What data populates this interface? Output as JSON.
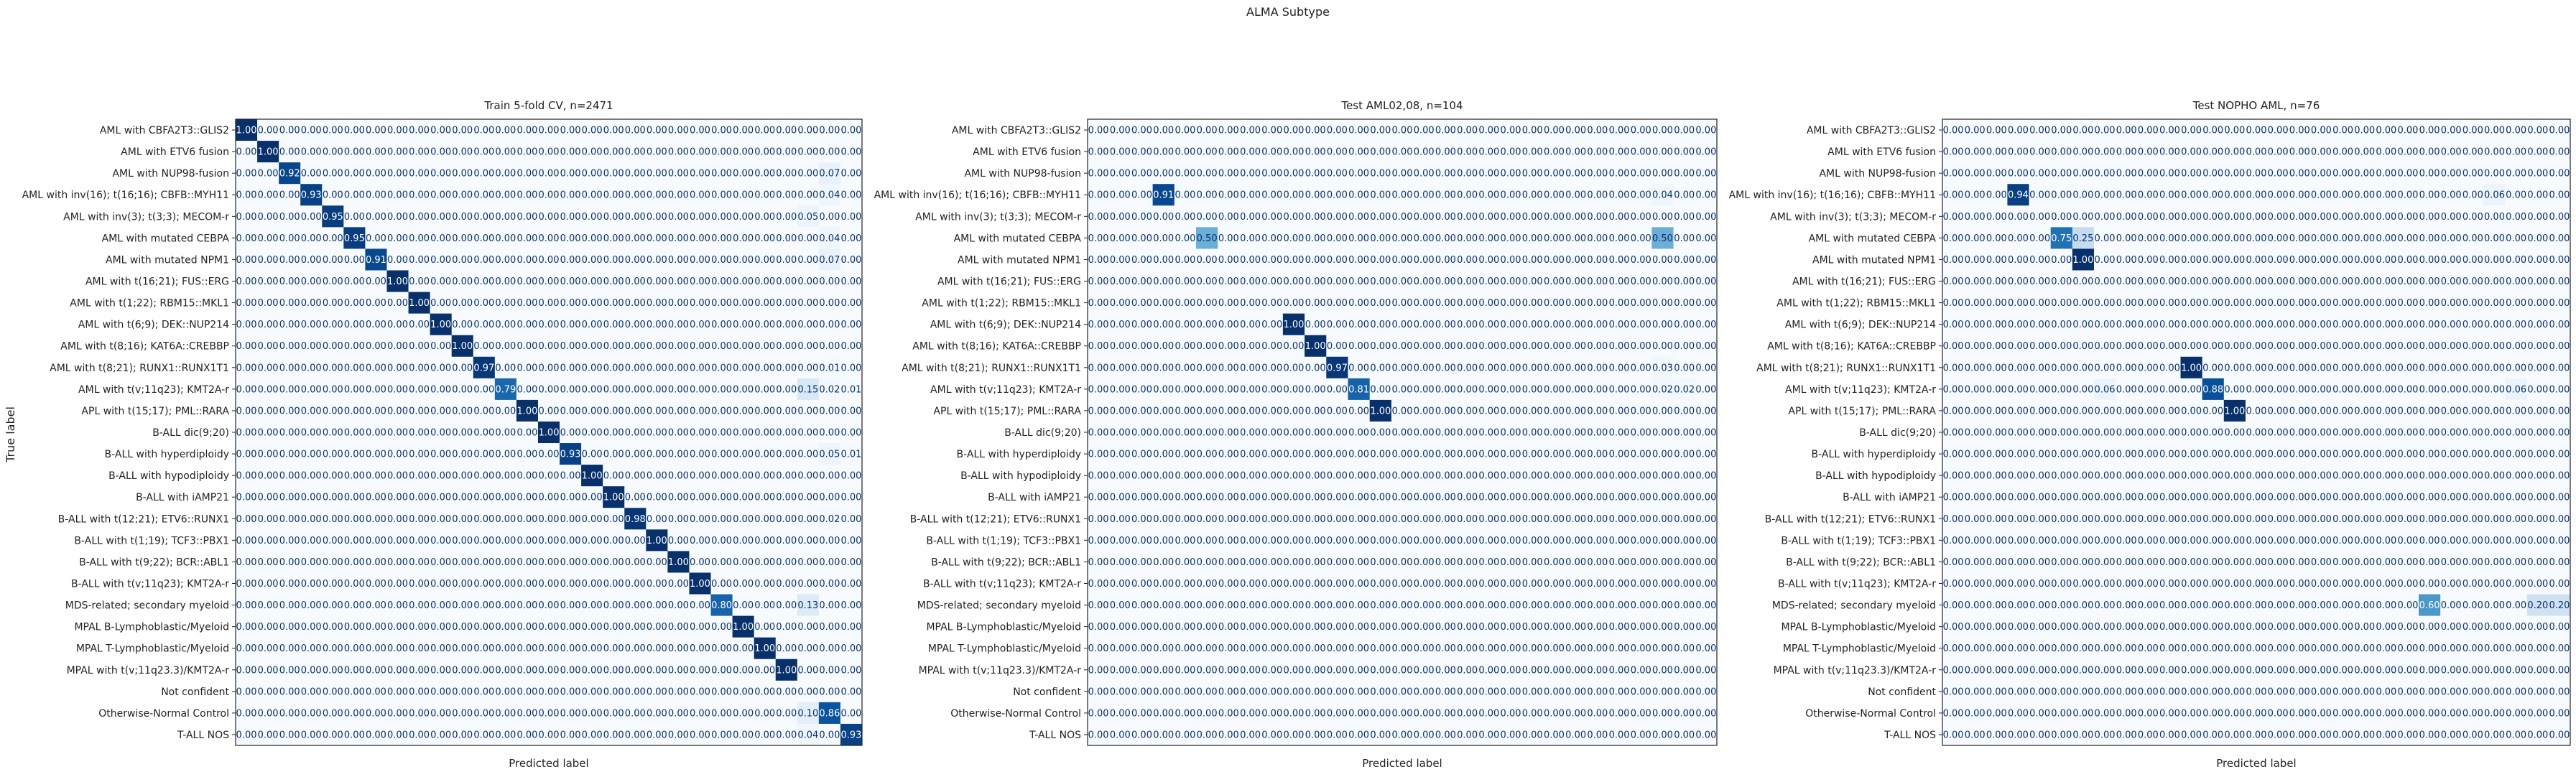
{
  "suptitle": "ALMA Subtype",
  "class_labels": [
    "AML with CBFA2T3::GLIS2",
    "AML with ETV6 fusion",
    "AML with NUP98-fusion",
    "AML with inv(16); t(16;16); CBFB::MYH11",
    "AML with inv(3); t(3;3); MECOM-r",
    "AML with mutated CEBPA",
    "AML with mutated NPM1",
    "AML with t(16;21); FUS::ERG",
    "AML with t(1;22); RBM15::MKL1",
    "AML with t(6;9); DEK::NUP214",
    "AML with t(8;16); KAT6A::CREBBP",
    "AML with t(8;21); RUNX1::RUNX1T1",
    "AML with t(v;11q23); KMT2A-r",
    "APL with t(15;17); PML::RARA",
    "B-ALL dic(9;20)",
    "B-ALL with hyperdiploidy",
    "B-ALL with hypodiploidy",
    "B-ALL with iAMP21",
    "B-ALL with t(12;21); ETV6::RUNX1",
    "B-ALL with t(1;19); TCF3::PBX1",
    "B-ALL with t(9;22); BCR::ABL1",
    "B-ALL with t(v;11q23); KMT2A-r",
    "MDS-related; secondary myeloid",
    "MPAL B-Lymphoblastic/Myeloid",
    "MPAL T-Lymphoblastic/Myeloid",
    "MPAL with t(v;11q23.3)/KMT2A-r",
    "Not confident",
    "Otherwise-Normal Control",
    "T-ALL NOS"
  ],
  "chart_data": [
    {
      "type": "heatmap",
      "title": "Train 5-fold CV, n=2471",
      "xlabel": "Predicted label",
      "ylabel": "True label",
      "value_format": "2 decimals",
      "colormap": "Blues",
      "vmin": 0,
      "vmax": 1,
      "cells": [
        [
          0,
          0,
          1.0
        ],
        [
          1,
          1,
          1.0
        ],
        [
          2,
          2,
          0.92
        ],
        [
          2,
          27,
          0.07
        ],
        [
          3,
          3,
          0.93
        ],
        [
          3,
          27,
          0.04
        ],
        [
          4,
          4,
          0.95
        ],
        [
          4,
          26,
          0.05
        ],
        [
          5,
          5,
          0.95
        ],
        [
          5,
          27,
          0.04
        ],
        [
          6,
          6,
          0.91
        ],
        [
          6,
          27,
          0.07
        ],
        [
          7,
          7,
          1.0
        ],
        [
          8,
          8,
          1.0
        ],
        [
          9,
          9,
          1.0
        ],
        [
          10,
          10,
          1.0
        ],
        [
          11,
          11,
          0.97
        ],
        [
          11,
          27,
          0.01
        ],
        [
          12,
          12,
          0.79
        ],
        [
          12,
          26,
          0.15
        ],
        [
          12,
          27,
          0.02
        ],
        [
          12,
          28,
          0.01
        ],
        [
          13,
          13,
          1.0
        ],
        [
          14,
          14,
          1.0
        ],
        [
          15,
          15,
          0.93
        ],
        [
          15,
          27,
          0.05
        ],
        [
          15,
          28,
          0.01
        ],
        [
          16,
          16,
          1.0
        ],
        [
          17,
          17,
          1.0
        ],
        [
          18,
          18,
          0.98
        ],
        [
          18,
          27,
          0.02
        ],
        [
          19,
          19,
          1.0
        ],
        [
          20,
          20,
          1.0
        ],
        [
          21,
          21,
          1.0
        ],
        [
          22,
          22,
          0.8
        ],
        [
          22,
          26,
          0.13
        ],
        [
          23,
          23,
          1.0
        ],
        [
          24,
          24,
          1.0
        ],
        [
          25,
          25,
          1.0
        ],
        [
          26,
          26,
          0.0
        ],
        [
          27,
          26,
          0.1
        ],
        [
          27,
          27,
          0.86
        ],
        [
          28,
          26,
          0.04
        ],
        [
          28,
          28,
          0.93
        ]
      ]
    },
    {
      "type": "heatmap",
      "title": "Test AML02,08, n=104",
      "xlabel": "Predicted label",
      "ylabel": "",
      "value_format": "2 decimals",
      "colormap": "Blues",
      "vmin": 0,
      "vmax": 1,
      "cells": [
        [
          3,
          3,
          0.91
        ],
        [
          3,
          26,
          0.04
        ],
        [
          5,
          5,
          0.5
        ],
        [
          5,
          26,
          0.5
        ],
        [
          9,
          9,
          1.0
        ],
        [
          10,
          10,
          1.0
        ],
        [
          11,
          11,
          0.97
        ],
        [
          11,
          26,
          0.03
        ],
        [
          12,
          12,
          0.81
        ],
        [
          12,
          26,
          0.02
        ],
        [
          12,
          27,
          0.02
        ],
        [
          13,
          13,
          1.0
        ]
      ]
    },
    {
      "type": "heatmap",
      "title": "Test NOPHO AML, n=76",
      "xlabel": "Predicted label",
      "ylabel": "",
      "value_format": "2 decimals",
      "colormap": "Blues",
      "vmin": 0,
      "vmax": 1,
      "cells": [
        [
          3,
          3,
          0.94
        ],
        [
          3,
          25,
          0.06
        ],
        [
          5,
          5,
          0.75
        ],
        [
          5,
          6,
          0.25
        ],
        [
          6,
          6,
          1.0
        ],
        [
          11,
          11,
          1.0
        ],
        [
          12,
          12,
          0.88
        ],
        [
          12,
          7,
          0.06
        ],
        [
          12,
          26,
          0.06
        ],
        [
          13,
          13,
          1.0
        ],
        [
          22,
          22,
          0.6
        ],
        [
          22,
          27,
          0.2
        ],
        [
          22,
          28,
          0.2
        ]
      ]
    }
  ]
}
